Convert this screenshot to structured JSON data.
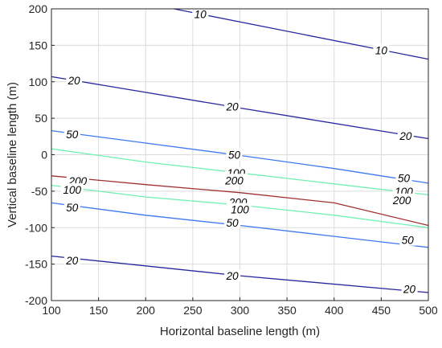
{
  "chart_data": {
    "type": "contour",
    "xlabel": "Horizontal baseline length (m)",
    "ylabel": "Vertical baseline length (m)",
    "xlim": [
      100,
      500
    ],
    "ylim": [
      -200,
      200
    ],
    "xticks": [
      100,
      150,
      200,
      250,
      300,
      350,
      400,
      450,
      500
    ],
    "yticks": [
      -200,
      -150,
      -100,
      -50,
      0,
      50,
      100,
      150,
      200
    ],
    "grid": true,
    "contours": [
      {
        "level": "10",
        "color": "#2626a0",
        "points": [
          [
            230,
            200
          ],
          [
            500,
            131
          ]
        ],
        "labels": [
          [
            258,
            193
          ],
          [
            450,
            143
          ]
        ]
      },
      {
        "level": "20",
        "color": "#2626a0",
        "points": [
          [
            100,
            107
          ],
          [
            300,
            64
          ],
          [
            500,
            22
          ]
        ],
        "labels": [
          [
            124,
            102
          ],
          [
            292,
            66
          ],
          [
            476,
            26
          ]
        ]
      },
      {
        "level": "50",
        "color": "#3c78f0",
        "points": [
          [
            100,
            33
          ],
          [
            200,
            16
          ],
          [
            300,
            -1
          ],
          [
            400,
            -19
          ],
          [
            500,
            -39
          ]
        ],
        "labels": [
          [
            122,
            28
          ],
          [
            294,
            0
          ],
          [
            474,
            -32
          ]
        ]
      },
      {
        "level": "100",
        "color": "#70f0b0",
        "points": [
          [
            100,
            8
          ],
          [
            200,
            -10
          ],
          [
            300,
            -25
          ],
          [
            400,
            -40
          ],
          [
            500,
            -55
          ]
        ],
        "labels": [
          [
            296,
            -25
          ],
          [
            474,
            -50
          ]
        ]
      },
      {
        "level": "200",
        "color": "#a03030",
        "points": [
          [
            100,
            -29
          ],
          [
            200,
            -41
          ],
          [
            300,
            -52
          ],
          [
            400,
            -66
          ],
          [
            500,
            -97
          ]
        ],
        "labels": [
          [
            128,
            -36
          ],
          [
            294,
            -35
          ],
          [
            472,
            -62
          ],
          [
            298,
            -65
          ]
        ]
      },
      {
        "level": "100",
        "color": "#70f0b0",
        "points": [
          [
            100,
            -42
          ],
          [
            200,
            -58
          ],
          [
            300,
            -69
          ],
          [
            400,
            -83
          ],
          [
            500,
            -100
          ]
        ],
        "labels": [
          [
            122,
            -48
          ],
          [
            300,
            -75
          ]
        ]
      },
      {
        "level": "50",
        "color": "#3c78f0",
        "points": [
          [
            100,
            -66
          ],
          [
            200,
            -83
          ],
          [
            300,
            -97
          ],
          [
            400,
            -112
          ],
          [
            500,
            -127
          ]
        ],
        "labels": [
          [
            122,
            -72
          ],
          [
            292,
            -93
          ],
          [
            478,
            -117
          ]
        ]
      },
      {
        "level": "20",
        "color": "#2626a0",
        "points": [
          [
            100,
            -139
          ],
          [
            300,
            -166
          ],
          [
            500,
            -189
          ]
        ],
        "labels": [
          [
            122,
            -145
          ],
          [
            292,
            -166
          ],
          [
            480,
            -184
          ]
        ]
      }
    ]
  }
}
